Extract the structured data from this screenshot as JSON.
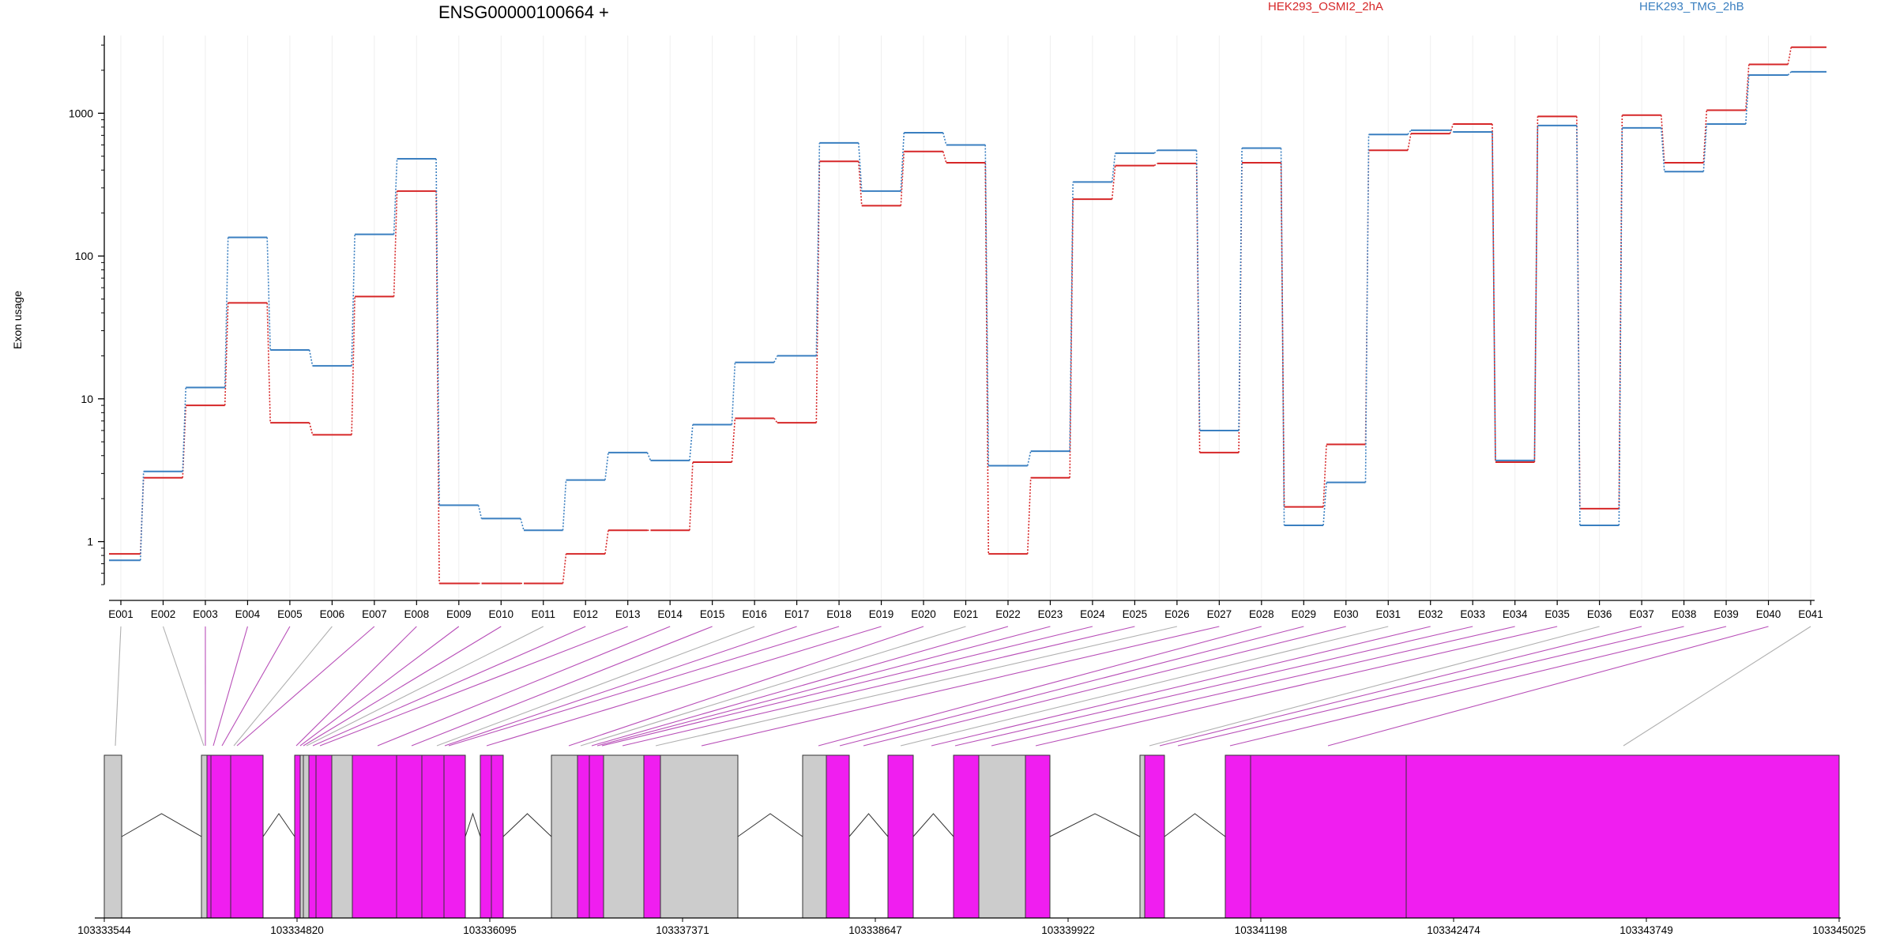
{
  "chart_data": {
    "type": "line",
    "title": "ENSG00000100664 +",
    "ylabel": "Exon usage",
    "yscale": "log",
    "ylim": [
      0.5,
      3500
    ],
    "yticks": [
      "1",
      "10",
      "100",
      "1000"
    ],
    "categories": [
      "E001",
      "E002",
      "E003",
      "E004",
      "E005",
      "E006",
      "E007",
      "E008",
      "E009",
      "E010",
      "E011",
      "E012",
      "E013",
      "E014",
      "E015",
      "E016",
      "E017",
      "E018",
      "E019",
      "E020",
      "E021",
      "E022",
      "E023",
      "E024",
      "E025",
      "E026",
      "E027",
      "E028",
      "E029",
      "E030",
      "E031",
      "E032",
      "E033",
      "E034",
      "E035",
      "E036",
      "E037",
      "E038",
      "E039",
      "E040",
      "E041"
    ],
    "series": [
      {
        "name": "HEK293_OSMI2_2hA",
        "color": "#d62728",
        "values": [
          0.82,
          2.8,
          9.0,
          47,
          6.8,
          5.6,
          52,
          285,
          0.51,
          0.51,
          0.51,
          0.82,
          1.2,
          1.2,
          3.6,
          7.3,
          6.8,
          460,
          225,
          540,
          450,
          0.82,
          2.8,
          250,
          430,
          445,
          4.2,
          450,
          1.75,
          4.8,
          550,
          720,
          840,
          3.6,
          950,
          1.7,
          970,
          450,
          1050,
          2200,
          2900
        ]
      },
      {
        "name": "HEK293_TMG_2hB",
        "color": "#3a7fc0",
        "values": [
          0.74,
          3.1,
          12,
          135,
          22,
          17,
          142,
          480,
          1.8,
          1.45,
          1.2,
          2.7,
          4.2,
          3.7,
          6.6,
          18,
          20,
          620,
          285,
          730,
          600,
          3.4,
          4.3,
          330,
          525,
          550,
          6.0,
          570,
          1.3,
          2.6,
          710,
          760,
          740,
          3.7,
          820,
          1.3,
          790,
          390,
          840,
          1850,
          1950
        ]
      }
    ],
    "gene_model": {
      "coordinate_labels": [
        "103333544",
        "103334820",
        "103336095",
        "103337371",
        "103338647",
        "103339922",
        "103341198",
        "103342474",
        "103343749",
        "103345025"
      ]
    }
  }
}
